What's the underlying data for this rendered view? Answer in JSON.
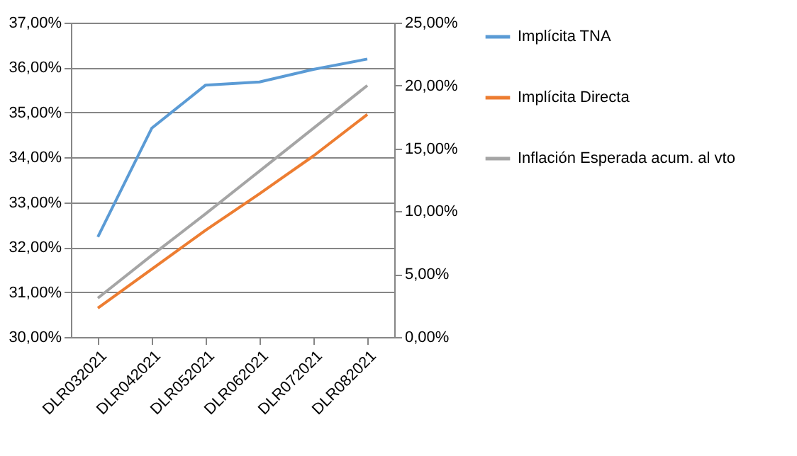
{
  "chart_data": {
    "type": "line",
    "categories": [
      "DLR032021",
      "DLR042021",
      "DLR052021",
      "DLR062021",
      "DLR072021",
      "DLR082021"
    ],
    "series": [
      {
        "name": "Implícita TNA",
        "color": "#5b9bd5",
        "values": [
          32.23,
          34.65,
          35.61,
          35.68,
          35.96,
          36.19
        ]
      },
      {
        "name": "Implícita Directa",
        "color": "#ed7d31",
        "axis": "y2",
        "values": [
          2.3,
          5.4,
          8.5,
          11.4,
          14.4,
          17.7
        ]
      },
      {
        "name": "Inflación Esperada acum. al vto",
        "color": "#a5a5a5",
        "axis": "y2",
        "values": [
          3.1,
          6.5,
          9.8,
          13.2,
          16.6,
          20.0
        ]
      }
    ],
    "ylim": [
      30,
      37
    ],
    "yticks": [
      {
        "value": 30,
        "label": "30,00%"
      },
      {
        "value": 31,
        "label": "31,00%"
      },
      {
        "value": 32,
        "label": "32,00%"
      },
      {
        "value": 33,
        "label": "33,00%"
      },
      {
        "value": 34,
        "label": "34,00%"
      },
      {
        "value": 35,
        "label": "35,00%"
      },
      {
        "value": 36,
        "label": "36,00%"
      },
      {
        "value": 37,
        "label": "37,00%"
      }
    ],
    "y2lim": [
      0,
      25
    ],
    "y2ticks": [
      {
        "value": 0,
        "label": "0,00%"
      },
      {
        "value": 5,
        "label": "5,00%"
      },
      {
        "value": 10,
        "label": "10,00%"
      },
      {
        "value": 15,
        "label": "15,00%"
      },
      {
        "value": 20,
        "label": "20,00%"
      },
      {
        "value": 25,
        "label": "25,00%"
      }
    ],
    "grid": "y",
    "legend": "right",
    "marker": "none",
    "line_style": "solid"
  }
}
